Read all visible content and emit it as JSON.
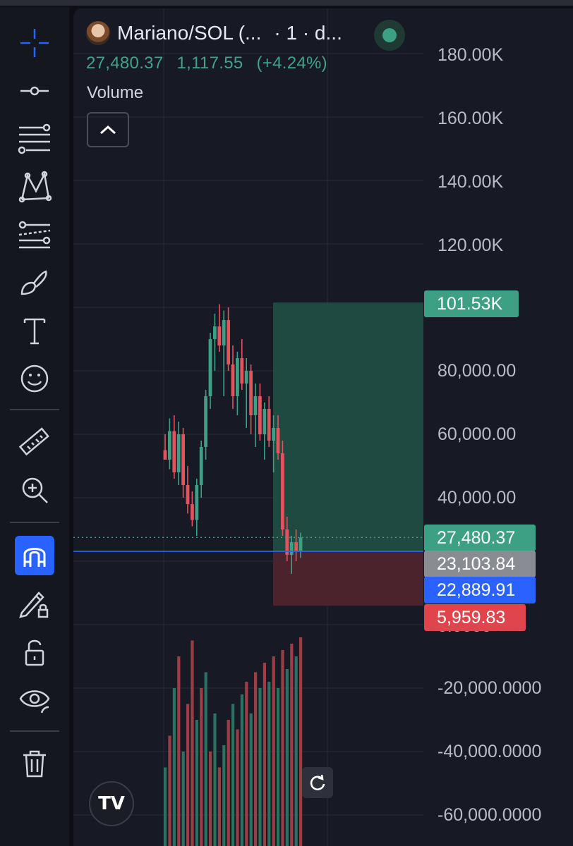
{
  "header": {
    "symbol": "Mariano/SOL (...",
    "interval": "· 1 · d...",
    "price": "27,480.37",
    "change": "1,117.55",
    "change_pct": "(+4.24%)",
    "volume_label": "Volume"
  },
  "price_axis": {
    "labels": [
      "180.00K",
      "160.00K",
      "140.00K",
      "120.00K",
      "80,000.00",
      "60,000.00",
      "40,000.00",
      "-20,000.0000",
      "-40,000.0000",
      "-60,000.0000"
    ],
    "partial_label": "0.0000"
  },
  "price_tags": {
    "target": "101.53K",
    "current": "27,480.37",
    "entry": "23,103.84",
    "crosshair": "22,889.91",
    "stop": "5,959.83"
  },
  "colors": {
    "up": "#3d9f84",
    "down": "#e0555d",
    "entry_line": "#2962ff",
    "target_zone": "#1f4a42",
    "stop_zone": "#4a232c",
    "active_tool": "#2962ff"
  },
  "toolbar": {
    "icons": [
      "crosshair-icon",
      "horizontal-line-icon",
      "fib-lines-icon",
      "pattern-icon",
      "parallel-channel-icon",
      "brush-icon",
      "text-icon",
      "emoji-icon",
      "ruler-icon",
      "zoom-in-icon",
      "magnet-icon",
      "lock-drawing-icon",
      "unlock-icon",
      "eye-icon",
      "trash-icon"
    ],
    "active": "magnet-icon"
  },
  "branding": {
    "logo": "TV"
  },
  "chart_data": {
    "type": "candlestick",
    "y_axis_unit": "price",
    "ylim": [
      -65000,
      185000
    ],
    "candles": [
      [
        55000,
        60000,
        52000,
        52000
      ],
      [
        52000,
        65000,
        49000,
        61000
      ],
      [
        61000,
        66000,
        46000,
        48000
      ],
      [
        48000,
        64000,
        44000,
        60000
      ],
      [
        60000,
        62000,
        40000,
        44000
      ],
      [
        44000,
        50000,
        35000,
        38000
      ],
      [
        38000,
        42000,
        31000,
        33000
      ],
      [
        33000,
        46000,
        28000,
        44000
      ],
      [
        44000,
        58000,
        40000,
        56000
      ],
      [
        56000,
        74000,
        52000,
        72000
      ],
      [
        72000,
        92000,
        68000,
        90000
      ],
      [
        90000,
        98000,
        80000,
        94000
      ],
      [
        94000,
        101000,
        86000,
        88000
      ],
      [
        88000,
        99000,
        72000,
        96000
      ],
      [
        96000,
        100000,
        80000,
        82000
      ],
      [
        82000,
        88000,
        68000,
        72000
      ],
      [
        72000,
        86000,
        66000,
        84000
      ],
      [
        84000,
        90000,
        74000,
        76000
      ],
      [
        76000,
        84000,
        62000,
        80000
      ],
      [
        80000,
        82000,
        60000,
        66000
      ],
      [
        66000,
        76000,
        56000,
        72000
      ],
      [
        72000,
        76000,
        58000,
        60000
      ],
      [
        60000,
        70000,
        52000,
        68000
      ],
      [
        68000,
        72000,
        56000,
        58000
      ],
      [
        58000,
        66000,
        48000,
        62000
      ],
      [
        62000,
        66000,
        52000,
        54000
      ],
      [
        54000,
        58000,
        28000,
        30000
      ],
      [
        30000,
        34000,
        20000,
        22000
      ],
      [
        22000,
        28000,
        16000,
        26000
      ],
      [
        26000,
        30000,
        20000,
        23000
      ],
      [
        23000,
        29000,
        21000,
        27480
      ]
    ],
    "volumes": [
      [
        -45000,
        "up"
      ],
      [
        -35000,
        "down"
      ],
      [
        -20000,
        "up"
      ],
      [
        -10000,
        "down"
      ],
      [
        -40000,
        "up"
      ],
      [
        -25000,
        "down"
      ],
      [
        -5000,
        "down"
      ],
      [
        -30000,
        "up"
      ],
      [
        -20000,
        "down"
      ],
      [
        -15000,
        "up"
      ],
      [
        -40000,
        "down"
      ],
      [
        -28000,
        "up"
      ],
      [
        -45000,
        "down"
      ],
      [
        -38000,
        "up"
      ],
      [
        -30000,
        "down"
      ],
      [
        -25000,
        "up"
      ],
      [
        -33000,
        "down"
      ],
      [
        -22000,
        "up"
      ],
      [
        -18000,
        "down"
      ],
      [
        -28000,
        "up"
      ],
      [
        -15000,
        "down"
      ],
      [
        -20000,
        "up"
      ],
      [
        -12000,
        "down"
      ],
      [
        -18000,
        "up"
      ],
      [
        -10000,
        "down"
      ],
      [
        -20000,
        "up"
      ],
      [
        -8000,
        "down"
      ],
      [
        -14000,
        "up"
      ],
      [
        -6000,
        "down"
      ],
      [
        -10000,
        "up"
      ],
      [
        -4000,
        "down"
      ]
    ],
    "position": {
      "entry": 23103.84,
      "target": 101530,
      "stop": 5959.83,
      "current": 27480.37
    }
  }
}
